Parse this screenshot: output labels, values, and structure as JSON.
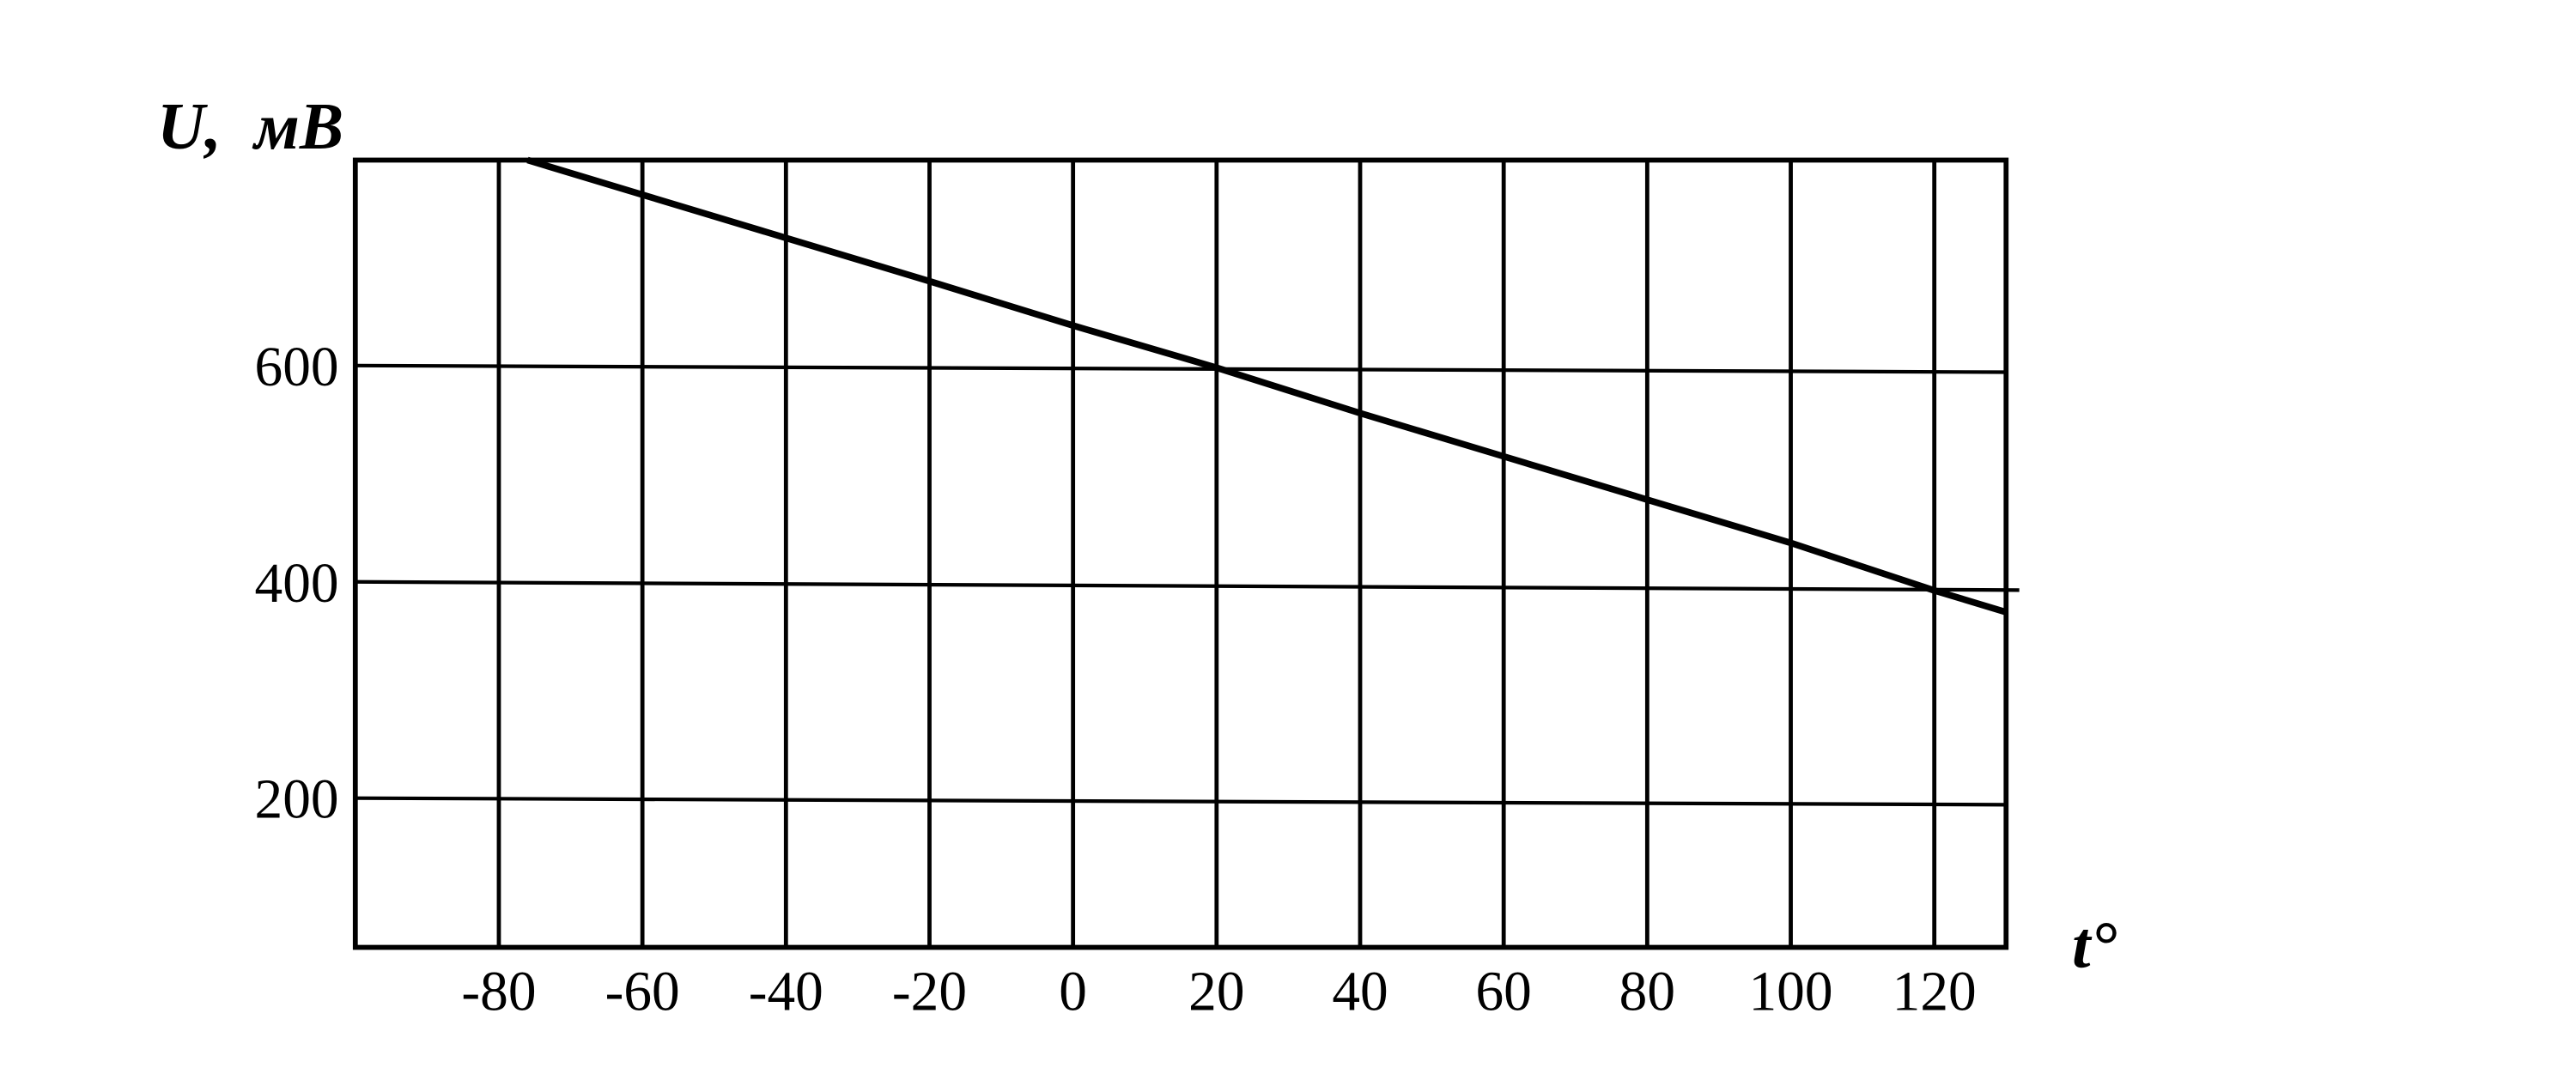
{
  "chart_data": {
    "type": "line",
    "title": "",
    "xlabel": "t°",
    "ylabel": "U,  мВ",
    "xlim": [
      -100,
      130
    ],
    "ylim": [
      62,
      790
    ],
    "xticks": [
      -80,
      -60,
      -40,
      -20,
      0,
      20,
      40,
      60,
      80,
      100,
      120
    ],
    "yticks": [
      200,
      400,
      600
    ],
    "grid": true,
    "series": [
      {
        "x": [
          -76,
          -60,
          -40,
          -20,
          0,
          20,
          40,
          60,
          80,
          100,
          120,
          130
        ],
        "y": [
          790,
          758,
          718,
          678,
          637,
          598,
          556,
          516,
          476,
          436,
          392,
          372
        ]
      }
    ],
    "colors": {
      "line": "#000000",
      "grid": "#000000",
      "background": "#ffffff"
    }
  }
}
